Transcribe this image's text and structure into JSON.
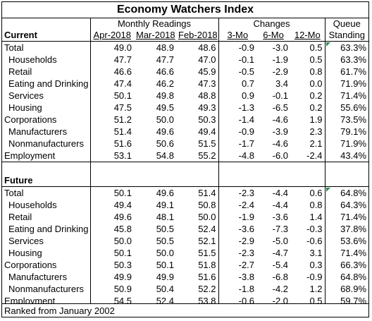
{
  "title": "Economy Watchers Index",
  "groups": {
    "monthly": "Monthly Readings",
    "changes": "Changes",
    "queue_top": "Queue",
    "queue_bottom": "Standing"
  },
  "columns": {
    "c1": "Apr-2018",
    "c2": "Mar-2018",
    "c3": "Feb-2018",
    "d1": "3-Mo",
    "d2": "6-Mo",
    "d3": "12-Mo"
  },
  "sections": {
    "current": "Current",
    "future": "Future"
  },
  "current_rows": [
    {
      "label": "Total",
      "v": [
        "49.0",
        "48.9",
        "48.6",
        "-0.9",
        "-3.0",
        "0.5",
        "63.3%"
      ]
    },
    {
      "label": "Households",
      "v": [
        "47.7",
        "47.7",
        "47.0",
        "-0.1",
        "-1.9",
        "0.5",
        "63.3%"
      ]
    },
    {
      "label": "Retail",
      "v": [
        "46.6",
        "46.6",
        "45.9",
        "-0.5",
        "-2.9",
        "0.8",
        "61.7%"
      ]
    },
    {
      "label": "Eating and Drinking",
      "v": [
        "47.4",
        "46.2",
        "47.3",
        "0.7",
        "3.4",
        "0.0",
        "71.9%"
      ]
    },
    {
      "label": "Services",
      "v": [
        "50.1",
        "49.8",
        "48.8",
        "0.9",
        "-0.1",
        "0.2",
        "71.4%"
      ]
    },
    {
      "label": "Housing",
      "v": [
        "47.5",
        "49.5",
        "49.3",
        "-1.3",
        "-6.5",
        "0.2",
        "55.6%"
      ]
    },
    {
      "label": "Corporations",
      "v": [
        "51.2",
        "50.0",
        "50.3",
        "-1.4",
        "-4.6",
        "1.9",
        "73.5%"
      ]
    },
    {
      "label": "Manufacturers",
      "v": [
        "51.4",
        "49.6",
        "49.4",
        "-0.9",
        "-3.9",
        "2.3",
        "79.1%"
      ]
    },
    {
      "label": "Nonmanufacturers",
      "v": [
        "51.6",
        "50.6",
        "51.5",
        "-1.7",
        "-4.6",
        "2.1",
        "71.9%"
      ]
    },
    {
      "label": "Employment",
      "v": [
        "53.1",
        "54.8",
        "55.2",
        "-4.8",
        "-6.0",
        "-2.4",
        "43.4%"
      ]
    }
  ],
  "future_rows": [
    {
      "label": "Total",
      "v": [
        "50.1",
        "49.6",
        "51.4",
        "-2.3",
        "-4.4",
        "0.6",
        "64.8%"
      ]
    },
    {
      "label": "Households",
      "v": [
        "49.4",
        "49.1",
        "50.8",
        "-2.4",
        "-4.4",
        "0.8",
        "64.3%"
      ]
    },
    {
      "label": "Retail",
      "v": [
        "49.6",
        "48.1",
        "50.0",
        "-1.9",
        "-3.6",
        "1.4",
        "71.4%"
      ]
    },
    {
      "label": "Eating and Drinking",
      "v": [
        "45.8",
        "50.5",
        "52.4",
        "-3.6",
        "-7.3",
        "-0.3",
        "37.8%"
      ]
    },
    {
      "label": "Services",
      "v": [
        "50.0",
        "50.5",
        "52.1",
        "-2.9",
        "-5.0",
        "-0.6",
        "53.6%"
      ]
    },
    {
      "label": "Housing",
      "v": [
        "50.1",
        "50.0",
        "51.5",
        "-2.3",
        "-4.7",
        "3.1",
        "71.4%"
      ]
    },
    {
      "label": "Corporations",
      "v": [
        "50.3",
        "50.1",
        "51.8",
        "-2.7",
        "-5.4",
        "0.3",
        "66.3%"
      ]
    },
    {
      "label": "Manufacturers",
      "v": [
        "49.9",
        "49.9",
        "51.6",
        "-3.8",
        "-6.8",
        "-0.9",
        "64.8%"
      ]
    },
    {
      "label": "Nonmanufacturers",
      "v": [
        "50.9",
        "50.4",
        "52.2",
        "-1.8",
        "-4.2",
        "1.2",
        "68.9%"
      ]
    },
    {
      "label": "Employment",
      "v": [
        "54.5",
        "52.4",
        "53.8",
        "-0.6",
        "-2.0",
        "0.5",
        "59.7%"
      ]
    }
  ],
  "footer": "Ranked from January 2002",
  "colors": {
    "marker": "#2e8b57"
  }
}
